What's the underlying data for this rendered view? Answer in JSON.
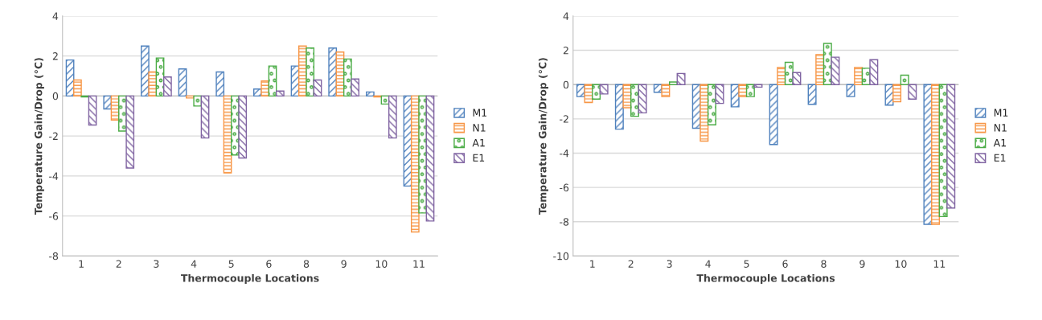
{
  "chart_data": [
    {
      "type": "bar",
      "xlabel": "Thermocouple Locations",
      "ylabel": "Temperature Gain/Drop (°C)",
      "categories": [
        "1",
        "2",
        "3",
        "4",
        "5",
        "6",
        "8",
        "9",
        "10",
        "11"
      ],
      "series": [
        {
          "name": "M1",
          "color": "#4f81bd",
          "values": [
            1.8,
            -0.65,
            2.5,
            1.35,
            1.2,
            0.35,
            1.5,
            2.4,
            0.2,
            -4.5
          ]
        },
        {
          "name": "N1",
          "color": "#f79646",
          "values": [
            0.8,
            -1.2,
            1.2,
            -0.1,
            -3.85,
            0.75,
            2.5,
            2.2,
            -0.05,
            -6.8
          ]
        },
        {
          "name": "A1",
          "color": "#4bac46",
          "values": [
            -0.05,
            -1.75,
            1.9,
            -0.5,
            -2.95,
            1.5,
            2.4,
            1.85,
            -0.4,
            -5.85
          ]
        },
        {
          "name": "E1",
          "color": "#8064a2",
          "values": [
            -1.45,
            -3.6,
            0.95,
            -2.1,
            -3.1,
            0.25,
            0.8,
            0.85,
            -2.1,
            -6.25
          ]
        }
      ],
      "ylim": [
        -8,
        4
      ],
      "yticks": [
        -8,
        -6,
        -4,
        -2,
        0,
        2,
        4
      ],
      "grid": "y",
      "legend": "right"
    },
    {
      "type": "bar",
      "xlabel": "Thermocouple Locations",
      "ylabel": "Temperature Gain/Drop (°C)",
      "categories": [
        "1",
        "2",
        "3",
        "4",
        "5",
        "6",
        "8",
        "9",
        "10",
        "11"
      ],
      "series": [
        {
          "name": "M1",
          "color": "#4f81bd",
          "values": [
            -0.7,
            -2.6,
            -0.45,
            -2.55,
            -1.3,
            -3.5,
            -1.15,
            -0.7,
            -1.2,
            -8.15
          ]
        },
        {
          "name": "N1",
          "color": "#f79646",
          "values": [
            -1.05,
            -1.35,
            -0.7,
            -3.3,
            -0.7,
            1.0,
            1.75,
            1.0,
            -1.0,
            -8.15
          ]
        },
        {
          "name": "A1",
          "color": "#4bac46",
          "values": [
            -0.85,
            -1.85,
            0.15,
            -2.35,
            -0.7,
            1.3,
            2.4,
            0.95,
            0.55,
            -7.7
          ]
        },
        {
          "name": "E1",
          "color": "#8064a2",
          "values": [
            -0.55,
            -1.65,
            0.65,
            -1.1,
            -0.15,
            0.7,
            1.6,
            1.45,
            -0.85,
            -7.2
          ]
        }
      ],
      "ylim": [
        -10,
        4
      ],
      "yticks": [
        -10,
        -8,
        -6,
        -4,
        -2,
        0,
        2,
        4
      ],
      "grid": "y",
      "legend": "right"
    }
  ]
}
